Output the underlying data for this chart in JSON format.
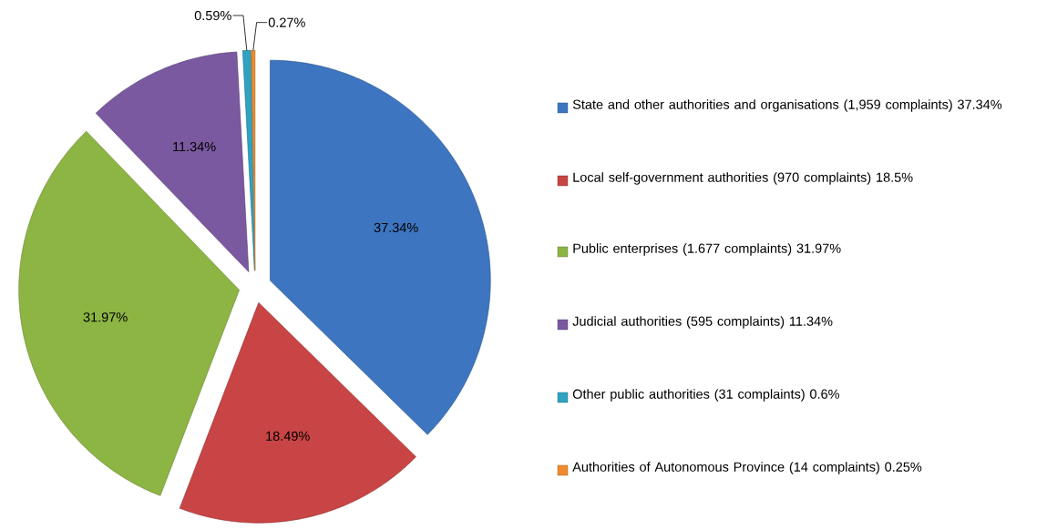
{
  "chart_data": {
    "type": "pie",
    "categories": [
      "State and other authorities and organisations (1,959 complaints) 37.34%",
      "Local self-government authorities (970 complaints) 18.5%",
      "Public enterprises (1.677 complaints) 31.97%",
      "Judicial authorities (595 complaints) 11.34%",
      "Other public authorities (31 complaints) 0.6%",
      "Authorities of Autonomous Province (14 complaints) 0.25%"
    ],
    "values": [
      37.34,
      18.49,
      31.97,
      11.34,
      0.59,
      0.27
    ],
    "value_labels": [
      "37.34%",
      "18.49%",
      "31.97%",
      "11.34%",
      "0.59%",
      "0.27%"
    ],
    "colors": [
      "#3d75c0",
      "#c94444",
      "#8db543",
      "#7b59a0",
      "#2fa3c0",
      "#f08a2c"
    ],
    "legend": "right"
  }
}
